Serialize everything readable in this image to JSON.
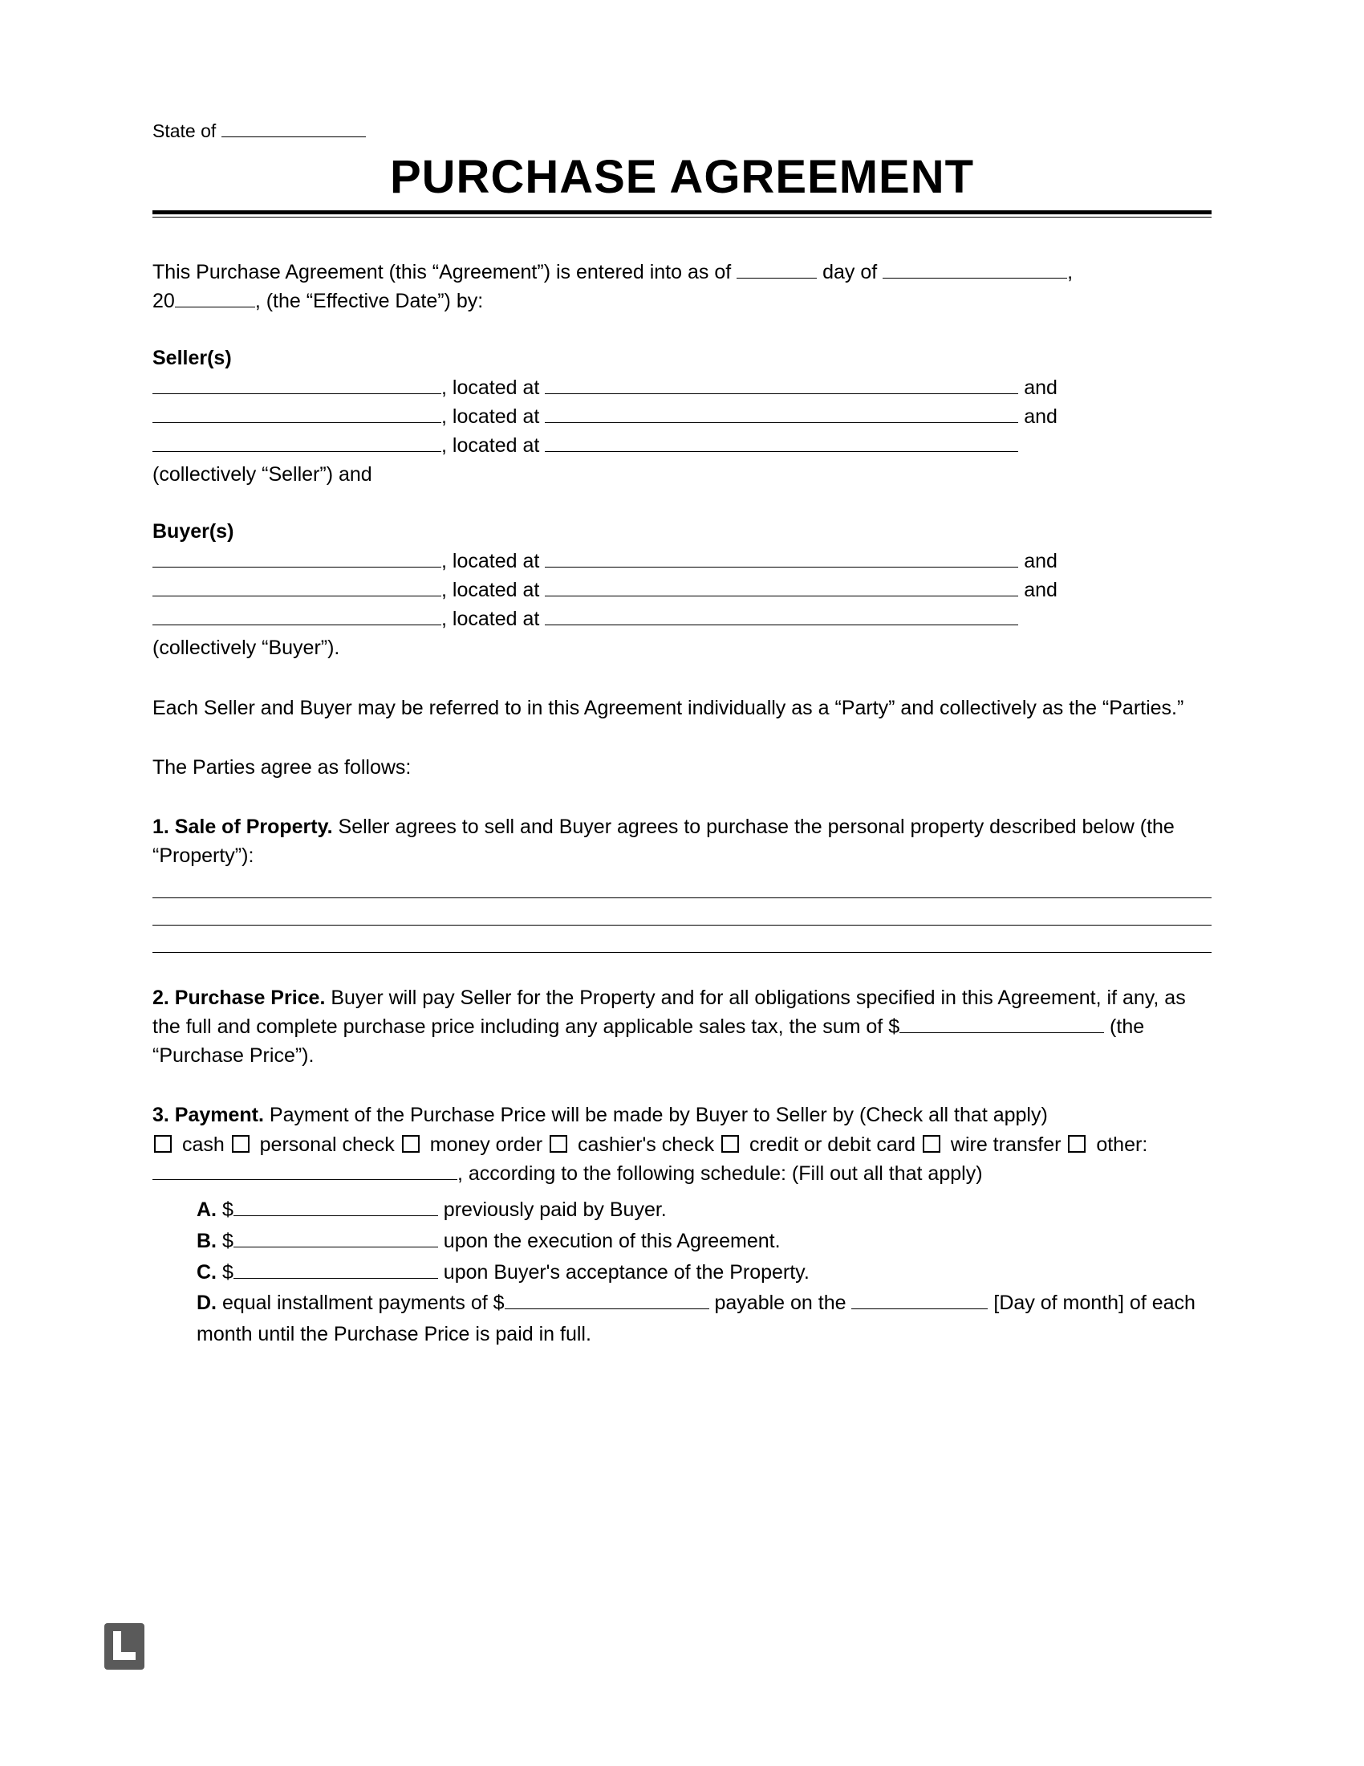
{
  "header": {
    "state_label": "State of",
    "title": "PURCHASE AGREEMENT"
  },
  "intro": {
    "line1a": "This Purchase Agreement (this “Agreement”) is entered into as of ",
    "line1b": " day of ",
    "line1c": ",",
    "line2a": "20",
    "line2b": ", (the “Effective Date”) by:"
  },
  "sellers": {
    "label": "Seller(s)",
    "located_at": ", located at ",
    "and": " and",
    "collectively": "(collectively “Seller”) and"
  },
  "buyers": {
    "label": "Buyer(s)",
    "located_at": ", located at ",
    "and": " and",
    "collectively": "(collectively “Buyer”)."
  },
  "parties_ref": "Each Seller and Buyer may be referred to in this Agreement individually as a “Party” and collectively as the “Parties.”",
  "agree": "The Parties agree as follows:",
  "s1": {
    "num": "1. Sale of Property.",
    "text": " Seller agrees to sell and Buyer agrees to purchase the personal property described below (the “Property”):"
  },
  "s2": {
    "num": "2. Purchase Price.",
    "text_a": " Buyer will pay Seller for the Property and for all obligations specified in this Agreement, if any, as the full and complete purchase price including any applicable sales tax, the sum of $",
    "text_b": " (the “Purchase Price”)."
  },
  "s3": {
    "num": "3. Payment.",
    "text_a": " Payment of the Purchase Price will be made by Buyer to Seller by (Check all that apply)",
    "opt_cash": " cash ",
    "opt_check": " personal check ",
    "opt_money": " money order ",
    "opt_cashier": " cashier's check ",
    "opt_credit": " credit or debit card ",
    "opt_wire": " wire transfer ",
    "opt_other": " other: ",
    "text_b": ", according to the following schedule: (Fill out all that apply)",
    "A_pre": "A.",
    "A_post": " previously paid by Buyer.",
    "B_pre": "B.",
    "B_post": " upon the execution of this Agreement.",
    "C_pre": "C.",
    "C_post": " upon Buyer's acceptance of the Property.",
    "D_pre": "D.",
    "D_text1": " equal installment payments of $",
    "D_text2": " payable on the ",
    "D_text3": " [Day of month] of each month until the Purchase Price is paid in full.",
    "dollar": " $"
  }
}
